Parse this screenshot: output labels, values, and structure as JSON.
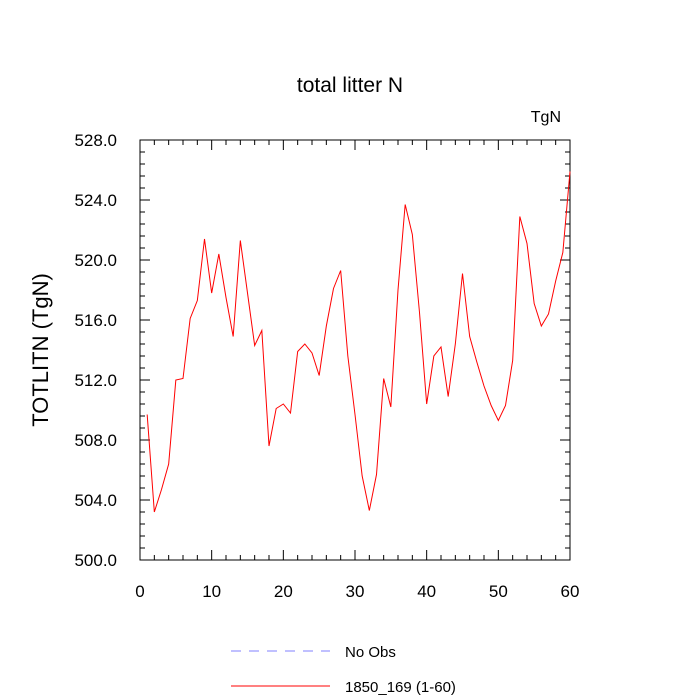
{
  "chart_data": {
    "type": "line",
    "title": "total litter N",
    "units_label": "TgN",
    "xlabel": "",
    "ylabel": "TOTLITN  (TgN)",
    "xlim": [
      0,
      60
    ],
    "ylim": [
      500,
      528
    ],
    "xticks": [
      0,
      10,
      20,
      30,
      40,
      50,
      60
    ],
    "yticks": [
      500,
      504,
      508,
      512,
      516,
      520,
      524,
      528
    ],
    "xtick_labels": [
      "0",
      "10",
      "20",
      "30",
      "40",
      "50",
      "60"
    ],
    "ytick_labels": [
      "500.0",
      "504.0",
      "508.0",
      "512.0",
      "516.0",
      "520.0",
      "524.0",
      "528.0"
    ],
    "grid": false,
    "legend_position": "bottom-center",
    "series": [
      {
        "name": "No Obs",
        "color": "#8080ff",
        "dashed": true,
        "x": [],
        "values": []
      },
      {
        "name": "1850_169 (1-60)",
        "color": "#ff0000",
        "dashed": false,
        "x": [
          1,
          2,
          3,
          4,
          5,
          6,
          7,
          8,
          9,
          10,
          11,
          12,
          13,
          14,
          15,
          16,
          17,
          18,
          19,
          20,
          21,
          22,
          23,
          24,
          25,
          26,
          27,
          28,
          29,
          30,
          31,
          32,
          33,
          34,
          35,
          36,
          37,
          38,
          39,
          40,
          41,
          42,
          43,
          44,
          45,
          46,
          47,
          48,
          49,
          50,
          51,
          52,
          53,
          54,
          55,
          56,
          57,
          58,
          59,
          60
        ],
        "values": [
          509.7,
          503.2,
          504.7,
          506.4,
          512.0,
          512.1,
          516.1,
          517.3,
          521.4,
          517.8,
          520.4,
          517.5,
          514.9,
          521.3,
          517.8,
          514.3,
          515.3,
          507.6,
          510.1,
          510.4,
          509.8,
          513.9,
          514.4,
          513.8,
          512.3,
          515.6,
          518.1,
          519.3,
          513.6,
          509.7,
          505.6,
          503.3,
          505.7,
          512.1,
          510.2,
          518.0,
          523.7,
          521.7,
          516.5,
          510.4,
          513.6,
          514.2,
          510.9,
          514.4,
          519.1,
          514.9,
          513.2,
          511.6,
          510.3,
          509.3,
          510.3,
          513.3,
          522.9,
          521.1,
          517.1,
          515.6,
          516.4,
          518.6,
          520.5,
          525.9
        ]
      }
    ]
  }
}
